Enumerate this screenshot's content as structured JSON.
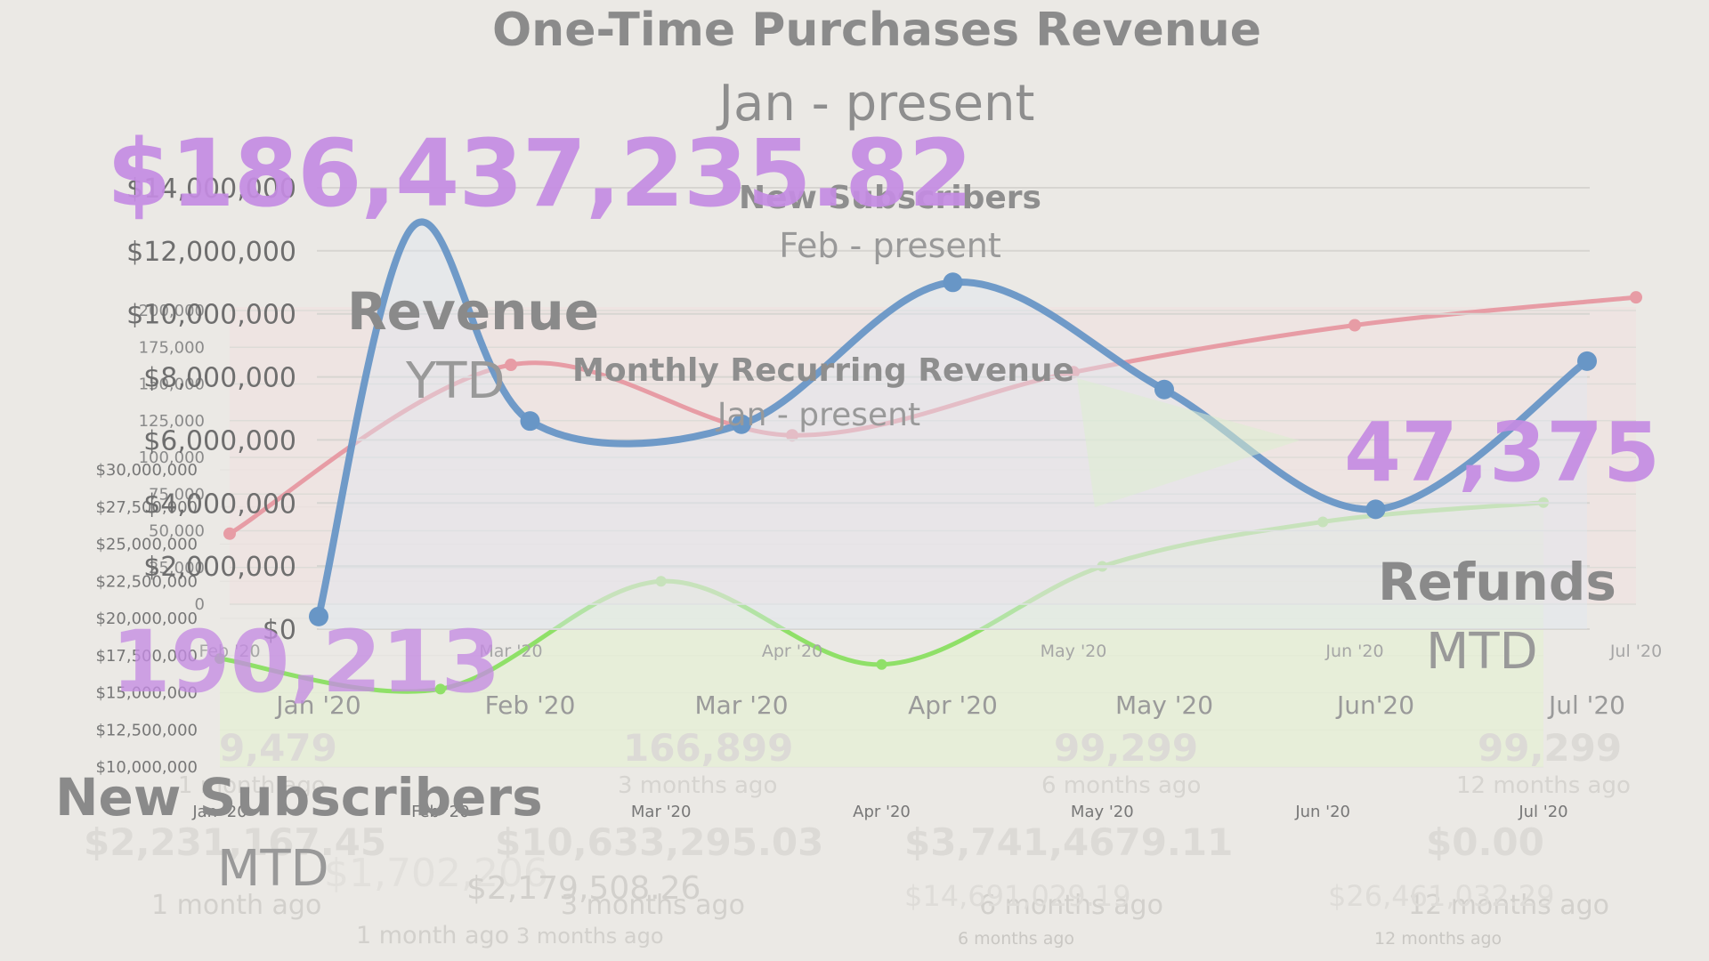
{
  "colors": {
    "background": "#ebe9e5",
    "accent_purple": "#c58ce3",
    "mrr_line": "#e79ca5",
    "revenue_line": "#6896c6",
    "subscribers_line": "#8fe068"
  },
  "header": {
    "title": "One-Time Purchases Revenue",
    "subtitle": "Jan - present"
  },
  "new_subscribers_chart_header": {
    "title": "New Subscribers",
    "subtitle": "Feb - present"
  },
  "mrr_chart_header": {
    "title": "Monthly Recurring Revenue",
    "subtitle": "Jan - present"
  },
  "kpis": {
    "revenue": {
      "value": "$186,437,235.82",
      "title": "Revenue",
      "period": "YTD"
    },
    "refunds": {
      "value": "47,375",
      "title": "Refunds",
      "period": "MTD"
    },
    "new_subscribers": {
      "value": "190,213",
      "title": "New Subscribers",
      "period": "MTD"
    }
  },
  "background_tiles": {
    "counts": [
      {
        "value": "9,479",
        "ago": "1 month ago"
      },
      {
        "value": "166,899",
        "ago": "3 months ago"
      },
      {
        "value": "99,299",
        "ago": "6 months ago"
      },
      {
        "value": "99,299",
        "ago": "12 months ago"
      }
    ],
    "amounts": [
      {
        "value": "$2,231,167.45",
        "ago": "1 month ago"
      },
      {
        "value": "$10,633,295.03",
        "ago": "3 months ago"
      },
      {
        "value": "$3,741,4679.11",
        "ago": "6 months ago"
      },
      {
        "value": "$0.00",
        "ago": "12 months ago"
      }
    ],
    "totals": [
      {
        "value": "$1,702,206",
        "ago": "1 month ago"
      },
      {
        "value": "$2,179,508.26",
        "ago": "3 months ago"
      },
      {
        "value": "$14,691,029.19",
        "ago": "6 months ago"
      },
      {
        "value": "$26,461,032.29",
        "ago": "12 months ago"
      }
    ]
  },
  "chart_data": [
    {
      "id": "one_time_purchases",
      "type": "line",
      "title": "One-Time Purchases Revenue",
      "subtitle": "Jan - present",
      "categories": [
        "Jan '20",
        "Feb '20",
        "Mar '20",
        "Apr '20",
        "May '20",
        "Jun'20",
        "Jul '20"
      ],
      "values": [
        400000,
        6600000,
        6500000,
        11000000,
        7600000,
        3800000,
        8500000
      ],
      "extra_peak": {
        "x": 0.45,
        "value": 12800000
      },
      "ylim": [
        0,
        14000000
      ],
      "yticks": [
        0,
        2000000,
        4000000,
        6000000,
        8000000,
        10000000,
        12000000,
        14000000
      ],
      "ytick_labels": [
        "$0",
        "$2,000,000",
        "$4,000,000",
        "$6,000,000",
        "$8,000,000",
        "$10,000,000",
        "$12,000,000",
        "$14,000,000"
      ],
      "grid": true
    },
    {
      "id": "new_subscribers",
      "type": "line",
      "title": "New Subscribers",
      "subtitle": "Feb - present",
      "categories": [
        "Feb '20",
        "Mar '20",
        "Apr '20",
        "May '20",
        "Jun '20",
        "Jul '20"
      ],
      "values": [
        48000,
        163000,
        115000,
        158000,
        190000,
        209000
      ],
      "ylim": [
        0,
        200000
      ],
      "yticks": [
        0,
        25000,
        50000,
        75000,
        100000,
        125000,
        150000,
        175000,
        200000
      ],
      "ytick_labels": [
        "0",
        "25,000",
        "50,000",
        "75,000",
        "100,000",
        "125,000",
        "150,000",
        "175,000",
        "200,000"
      ],
      "grid": true
    },
    {
      "id": "monthly_recurring_revenue",
      "type": "line",
      "title": "Monthly Recurring Revenue",
      "subtitle": "Jan - present",
      "categories": [
        "Jan '20",
        "Feb '20",
        "Mar '20",
        "Apr '20",
        "May '20",
        "Jun '20",
        "Jul '20"
      ],
      "values": [
        17300000,
        15250000,
        22500000,
        16900000,
        23500000,
        26500000,
        27800000
      ],
      "ylim": [
        10000000,
        30000000
      ],
      "yticks": [
        10000000,
        12500000,
        15000000,
        17500000,
        20000000,
        22500000,
        25000000,
        27500000,
        30000000
      ],
      "ytick_labels": [
        "$10,000,000",
        "$12,500,000",
        "$15,000,000",
        "$17,500,000",
        "$20,000,000",
        "$22,500,000",
        "$25,000,000",
        "$27,500,000",
        "$30,000,000"
      ],
      "grid": true
    }
  ]
}
